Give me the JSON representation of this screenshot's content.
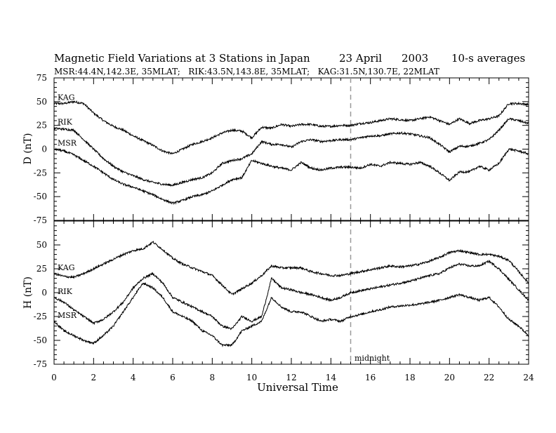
{
  "chart_data": {
    "type": "line",
    "title": "Magnetic Field Variations at 3 Stations in Japan",
    "date": "23 April",
    "year": "2003",
    "cadence": "10-s averages",
    "subtitle": "MSR:44.4N,142.3E, 35MLAT;   RIK:43.5N,143.8E, 35MLAT;   KAG:31.5N,130.7E, 22MLAT",
    "xlabel": "Universal Time",
    "xlim": [
      0,
      24
    ],
    "xticks": [
      "0",
      "2",
      "4",
      "6",
      "8",
      "10",
      "12",
      "14",
      "16",
      "18",
      "20",
      "22",
      "24"
    ],
    "marker": {
      "x": 15,
      "label": "midnight",
      "color": "#999999"
    },
    "line_color": "#000000",
    "panels": [
      {
        "ylabel": "D (nT)",
        "ylim": [
          -75,
          75
        ],
        "yticks": [
          "75",
          "50",
          "25",
          "0",
          "-25",
          "-50",
          "-75"
        ],
        "series": [
          {
            "name": "KAG",
            "x": [
              0,
              0.5,
              1,
              1.5,
              2,
              2.5,
              3,
              3.5,
              4,
              4.5,
              5,
              5.5,
              6,
              6.5,
              7,
              7.5,
              8,
              8.5,
              9,
              9.5,
              10,
              10.5,
              11,
              11.5,
              12,
              12.5,
              13,
              13.5,
              14,
              14.5,
              15,
              15.5,
              16,
              16.5,
              17,
              17.5,
              18,
              18.5,
              19,
              19.5,
              20,
              20.5,
              21,
              21.5,
              22,
              22.5,
              23,
              23.5,
              24
            ],
            "y": [
              48,
              48,
              50,
              48,
              38,
              30,
              24,
              20,
              14,
              9,
              4,
              -2,
              -5,
              0,
              5,
              8,
              12,
              17,
              20,
              19,
              12,
              23,
              22,
              26,
              24,
              26,
              26,
              24,
              24,
              25,
              25,
              27,
              28,
              30,
              32,
              31,
              30,
              32,
              34,
              30,
              26,
              32,
              27,
              30,
              32,
              35,
              48,
              48,
              47
            ]
          },
          {
            "name": "RIK",
            "x": [
              0,
              0.5,
              1,
              1.5,
              2,
              2.5,
              3,
              3.5,
              4,
              4.5,
              5,
              5.5,
              6,
              6.5,
              7,
              7.5,
              8,
              8.5,
              9,
              9.5,
              10,
              10.5,
              11,
              11.5,
              12,
              12.5,
              13,
              13.5,
              14,
              14.5,
              15,
              15.5,
              16,
              16.5,
              17,
              17.5,
              18,
              18.5,
              19,
              19.5,
              20,
              20.5,
              21,
              21.5,
              22,
              22.5,
              23,
              23.5,
              24
            ],
            "y": [
              22,
              21,
              20,
              10,
              0,
              -10,
              -18,
              -24,
              -28,
              -32,
              -35,
              -37,
              -38,
              -35,
              -32,
              -30,
              -25,
              -15,
              -12,
              -10,
              -5,
              8,
              5,
              5,
              2,
              8,
              10,
              8,
              9,
              10,
              10,
              12,
              14,
              14,
              16,
              17,
              16,
              14,
              12,
              5,
              -3,
              3,
              3,
              6,
              10,
              20,
              32,
              30,
              27
            ]
          },
          {
            "name": "MSR",
            "x": [
              0,
              0.5,
              1,
              1.5,
              2,
              2.5,
              3,
              3.5,
              4,
              4.5,
              5,
              5.5,
              6,
              6.5,
              7,
              7.5,
              8,
              8.5,
              9,
              9.5,
              10,
              10.5,
              11,
              11.5,
              12,
              12.5,
              13,
              13.5,
              14,
              14.5,
              15,
              15.5,
              16,
              16.5,
              17,
              17.5,
              18,
              18.5,
              19,
              19.5,
              20,
              20.5,
              21,
              21.5,
              22,
              22.5,
              23,
              23.5,
              24
            ],
            "y": [
              0,
              -2,
              -6,
              -12,
              -18,
              -25,
              -32,
              -37,
              -40,
              -44,
              -48,
              -53,
              -57,
              -54,
              -50,
              -48,
              -44,
              -38,
              -32,
              -30,
              -12,
              -15,
              -18,
              -20,
              -22,
              -14,
              -20,
              -22,
              -20,
              -19,
              -19,
              -20,
              -16,
              -18,
              -14,
              -15,
              -16,
              -14,
              -18,
              -25,
              -33,
              -24,
              -24,
              -18,
              -22,
              -15,
              0,
              -2,
              -5
            ]
          }
        ]
      },
      {
        "ylabel": "H (nT)",
        "ylim": [
          -75,
          75
        ],
        "yticks": [
          "75",
          "50",
          "25",
          "0",
          "-25",
          "-50",
          "-75"
        ],
        "series": [
          {
            "name": "KAG",
            "x": [
              0,
              0.5,
              1,
              1.5,
              2,
              2.5,
              3,
              3.5,
              4,
              4.5,
              5,
              5.5,
              6,
              6.5,
              7,
              7.5,
              8,
              8.5,
              9,
              9.5,
              10,
              10.5,
              11,
              11.5,
              12,
              12.5,
              13,
              13.5,
              14,
              14.5,
              15,
              15.5,
              16,
              16.5,
              17,
              17.5,
              18,
              18.5,
              19,
              19.5,
              20,
              20.5,
              21,
              21.5,
              22,
              22.5,
              23,
              23.5,
              24
            ],
            "y": [
              20,
              17,
              16,
              20,
              25,
              30,
              35,
              40,
              44,
              46,
              53,
              45,
              36,
              30,
              26,
              22,
              18,
              8,
              -2,
              4,
              10,
              18,
              28,
              26,
              26,
              26,
              22,
              20,
              18,
              18,
              20,
              22,
              24,
              26,
              28,
              27,
              28,
              30,
              33,
              37,
              42,
              44,
              42,
              40,
              40,
              38,
              34,
              22,
              10
            ]
          },
          {
            "name": "RIK",
            "x": [
              0,
              0.5,
              1,
              1.5,
              2,
              2.5,
              3,
              3.5,
              4,
              4.5,
              5,
              5.5,
              6,
              6.5,
              7,
              7.5,
              8,
              8.5,
              9,
              9.5,
              10,
              10.5,
              11,
              11.5,
              12,
              12.5,
              13,
              13.5,
              14,
              14.5,
              15,
              15.5,
              16,
              16.5,
              17,
              17.5,
              18,
              18.5,
              19,
              19.5,
              20,
              20.5,
              21,
              21.5,
              22,
              22.5,
              23,
              23.5,
              24
            ],
            "y": [
              -5,
              -10,
              -18,
              -25,
              -32,
              -28,
              -20,
              -10,
              5,
              15,
              20,
              10,
              -5,
              -10,
              -15,
              -20,
              -25,
              -35,
              -38,
              -25,
              -30,
              -25,
              15,
              5,
              3,
              0,
              -2,
              -5,
              -8,
              -5,
              0,
              2,
              4,
              6,
              8,
              10,
              12,
              15,
              18,
              20,
              26,
              30,
              28,
              28,
              33,
              25,
              14,
              3,
              -8
            ]
          },
          {
            "name": "MSR",
            "x": [
              0,
              0.5,
              1,
              1.5,
              2,
              2.5,
              3,
              3.5,
              4,
              4.5,
              5,
              5.5,
              6,
              6.5,
              7,
              7.5,
              8,
              8.5,
              9,
              9.5,
              10,
              10.5,
              11,
              11.5,
              12,
              12.5,
              13,
              13.5,
              14,
              14.5,
              15,
              15.5,
              16,
              16.5,
              17,
              17.5,
              18,
              18.5,
              19,
              19.5,
              20,
              20.5,
              21,
              21.5,
              22,
              22.5,
              23,
              23.5,
              24
            ],
            "y": [
              -30,
              -40,
              -45,
              -50,
              -53,
              -45,
              -35,
              -20,
              -5,
              10,
              5,
              -5,
              -20,
              -25,
              -30,
              -40,
              -45,
              -55,
              -55,
              -40,
              -35,
              -30,
              -5,
              -15,
              -20,
              -20,
              -25,
              -30,
              -28,
              -30,
              -25,
              -23,
              -20,
              -18,
              -15,
              -14,
              -13,
              -12,
              -10,
              -8,
              -5,
              -2,
              -5,
              -8,
              -5,
              -15,
              -28,
              -35,
              -45
            ]
          }
        ]
      }
    ]
  }
}
